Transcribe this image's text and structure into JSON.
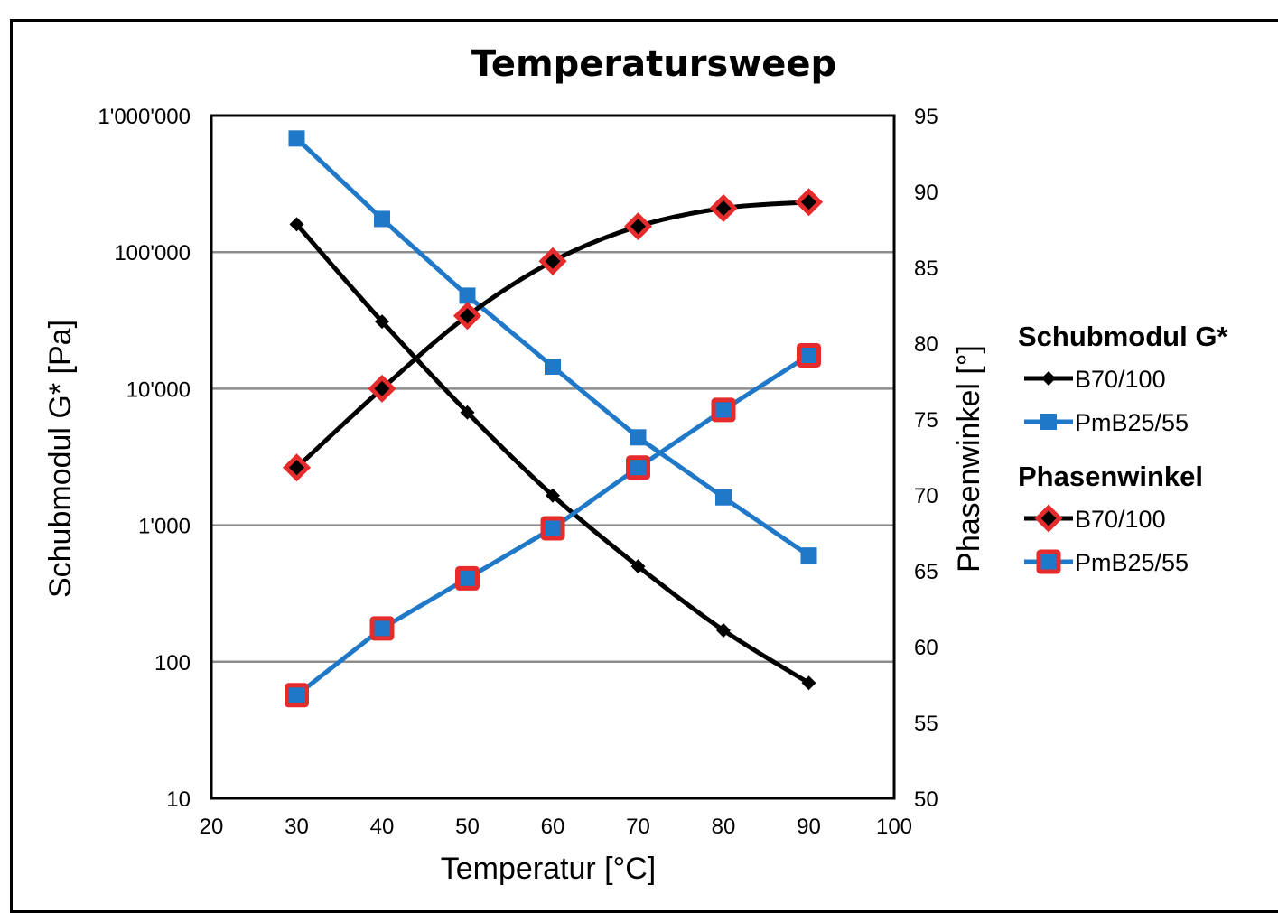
{
  "chart_data": {
    "type": "line",
    "title": "Temperatursweep",
    "xlabel": "Temperatur [°C]",
    "ylabel": "Schubmodul G* [Pa]",
    "y2label": "Phasenwinkel [°]",
    "xlim": [
      20,
      100
    ],
    "xticks": [
      "20",
      "30",
      "40",
      "50",
      "60",
      "70",
      "80",
      "90",
      "100"
    ],
    "ylim": [
      10,
      1000000
    ],
    "yscale": "log",
    "yticks": [
      "10",
      "100",
      "1'000",
      "10'000",
      "100'000",
      "1'000'000"
    ],
    "y2lim": [
      50,
      95
    ],
    "y2ticks": [
      "50",
      "55",
      "60",
      "65",
      "70",
      "75",
      "80",
      "85",
      "90",
      "95"
    ],
    "grid": "horizontal",
    "legend": {
      "placement": "right",
      "groups": [
        {
          "heading": "Schubmodul G*",
          "items": [
            "B70/100",
            "PmB25/55"
          ]
        },
        {
          "heading": "Phasenwinkel",
          "items": [
            "B70/100",
            "PmB25/55"
          ]
        }
      ]
    },
    "x": [
      30,
      40,
      50,
      60,
      70,
      80,
      90
    ],
    "series": [
      {
        "name": "B70/100",
        "group": "Schubmodul G*",
        "axis": "left",
        "color": "#000000",
        "marker": "diamond",
        "smooth": true,
        "values": [
          160000,
          31000,
          6700,
          1650,
          500,
          170,
          70
        ]
      },
      {
        "name": "PmB25/55",
        "group": "Schubmodul G*",
        "axis": "left",
        "color": "#1f78c8",
        "marker": "square",
        "smooth": false,
        "values": [
          680000,
          175000,
          48000,
          14500,
          4400,
          1600,
          600
        ]
      },
      {
        "name": "B70/100",
        "group": "Phasenwinkel",
        "axis": "right",
        "color": "#000000",
        "marker": "diamond-red",
        "smooth": true,
        "values": [
          71.8,
          77.0,
          81.8,
          85.4,
          87.7,
          88.9,
          89.3
        ]
      },
      {
        "name": "PmB25/55",
        "group": "Phasenwinkel",
        "axis": "right",
        "color": "#1f78c8",
        "marker": "square-red",
        "smooth": false,
        "values": [
          56.8,
          61.2,
          64.5,
          67.8,
          71.8,
          75.6,
          79.2
        ]
      }
    ]
  }
}
